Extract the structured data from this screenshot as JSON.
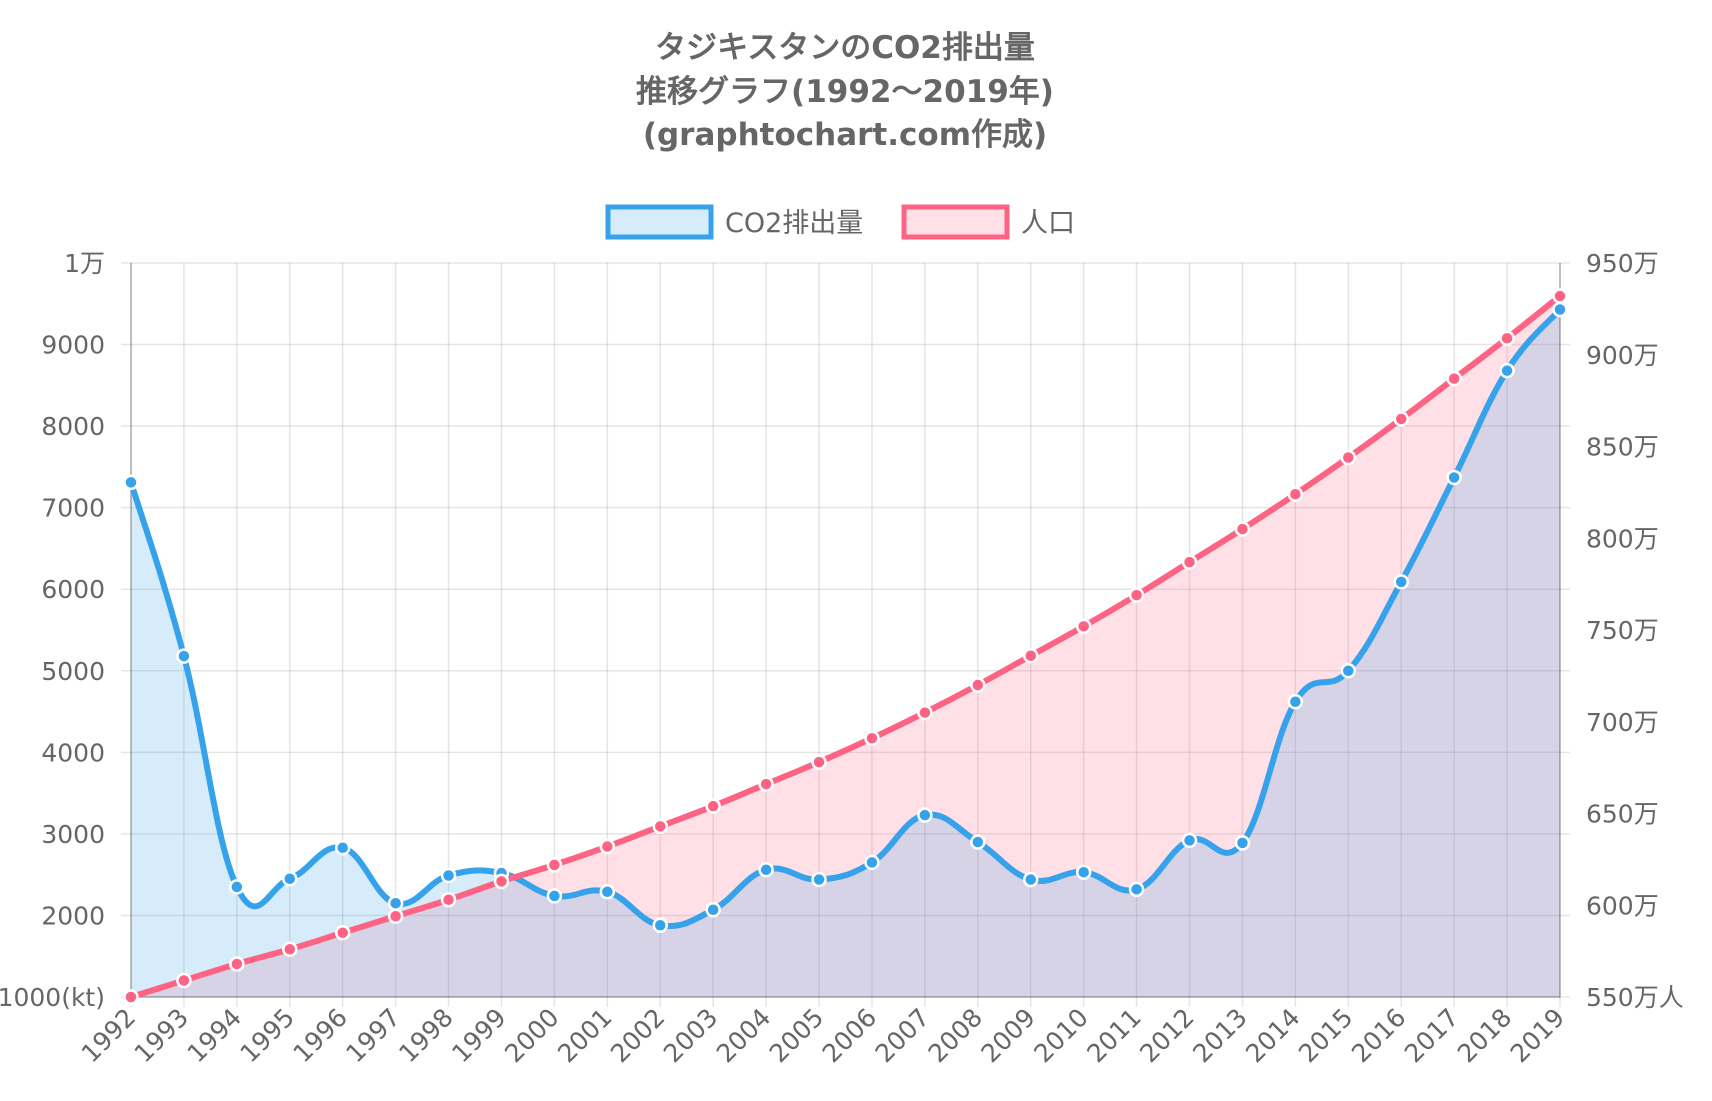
{
  "chart_data": {
    "type": "line",
    "title": [
      "タジキスタンのCO2排出量",
      "推移グラフ(1992〜2019年)",
      "(graphtochart.com作成)"
    ],
    "legend": {
      "position": "top"
    },
    "categories": [
      "1992",
      "1993",
      "1994",
      "1995",
      "1996",
      "1997",
      "1998",
      "1999",
      "2000",
      "2001",
      "2002",
      "2003",
      "2004",
      "2005",
      "2006",
      "2007",
      "2008",
      "2009",
      "2010",
      "2011",
      "2012",
      "2013",
      "2014",
      "2015",
      "2016",
      "2017",
      "2018",
      "2019"
    ],
    "series": [
      {
        "name": "CO2排出量",
        "axis": "left",
        "color": "#36a2eb",
        "fill": "rgba(54,162,235,0.2)",
        "values": [
          7310,
          5180,
          2350,
          2450,
          2830,
          2150,
          2490,
          2520,
          2240,
          2290,
          1880,
          2070,
          2560,
          2440,
          2650,
          3230,
          2900,
          2440,
          2530,
          2320,
          2920,
          2890,
          4620,
          5000,
          6090,
          7370,
          8680,
          9430
        ]
      },
      {
        "name": "人口",
        "axis": "right",
        "color": "#ff6384",
        "fill": "rgba(255,99,132,0.2)",
        "values": [
          5500000,
          5590000,
          5680000,
          5760000,
          5850000,
          5940000,
          6030000,
          6130000,
          6220000,
          6320000,
          6430000,
          6540000,
          6660000,
          6780000,
          6910000,
          7050000,
          7200000,
          7360000,
          7520000,
          7690000,
          7870000,
          8050000,
          8240000,
          8440000,
          8650000,
          8870000,
          9090000,
          9320000
        ]
      }
    ],
    "y_left": {
      "min": 1000,
      "max": 10000,
      "tick_values": [
        10000,
        9000,
        8000,
        7000,
        6000,
        5000,
        4000,
        3000,
        2000,
        1000
      ],
      "tick_labels": [
        "1万",
        "9000",
        "8000",
        "7000",
        "6000",
        "5000",
        "4000",
        "3000",
        "2000",
        "1000(kt)"
      ]
    },
    "y_right": {
      "min": 5500000,
      "max": 9500000,
      "tick_values": [
        9500000,
        9000000,
        8500000,
        8000000,
        7500000,
        7000000,
        6500000,
        6000000,
        5500000
      ],
      "tick_labels": [
        "950万",
        "900万",
        "850万",
        "800万",
        "750万",
        "700万",
        "650万",
        "600万",
        "550万人"
      ]
    },
    "grid": true
  }
}
